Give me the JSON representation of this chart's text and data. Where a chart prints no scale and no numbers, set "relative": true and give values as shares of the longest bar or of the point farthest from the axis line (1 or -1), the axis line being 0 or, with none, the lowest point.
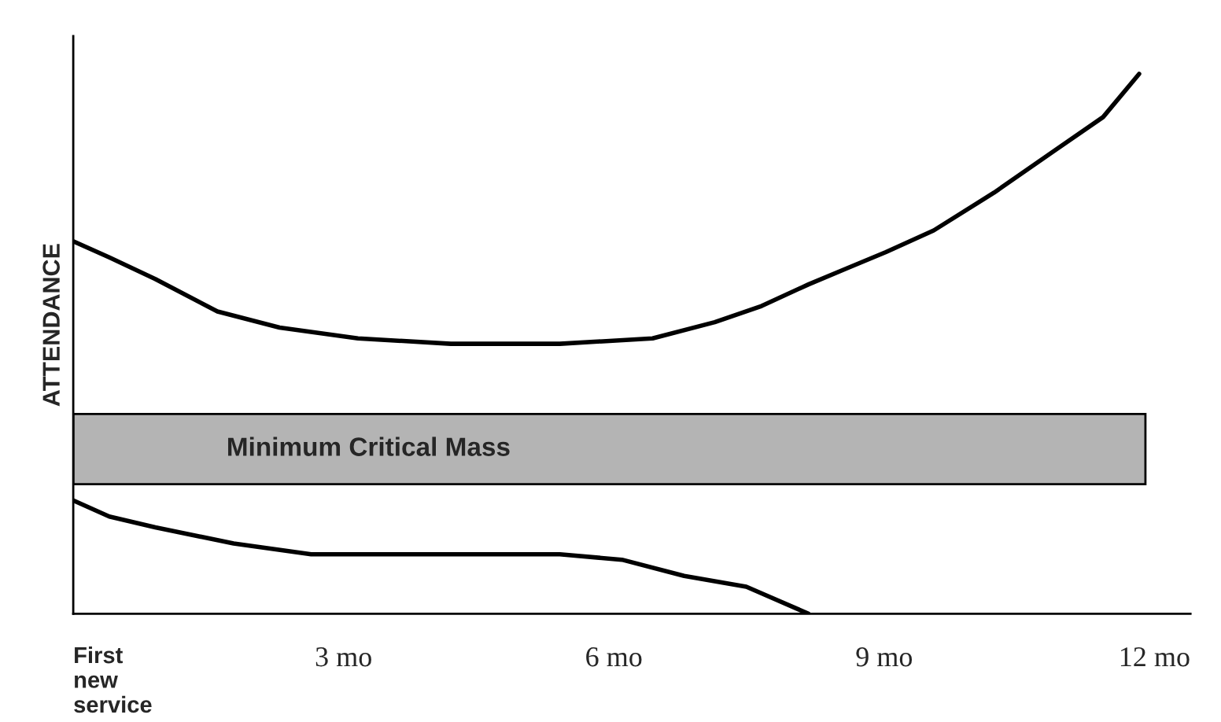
{
  "chart_data": {
    "type": "line",
    "relative": true,
    "ylabel": "ATTENDANCE",
    "tick_labels": "x",
    "grid": false,
    "marker": "none",
    "line_style": "solid",
    "xlim": [
      0,
      12.4
    ],
    "xticks": [
      {
        "value": 0,
        "label": "First\nnew\nservice"
      },
      {
        "value": 3,
        "label": "3 mo"
      },
      {
        "value": 6,
        "label": "6 mo"
      },
      {
        "value": 9,
        "label": "9 mo"
      },
      {
        "value": 12,
        "label": "12 mo"
      }
    ],
    "series": [
      {
        "color": "#000000",
        "x": [
          0,
          0.4,
          0.91,
          1.6,
          2.29,
          3.16,
          4.19,
          5.4,
          6.43,
          7.12,
          7.64,
          8.16,
          8.59,
          9.02,
          9.55,
          10.22,
          10.91,
          11.43,
          11.83
        ],
        "values": [
          0.69,
          0.66,
          0.62,
          0.56,
          0.53,
          0.51,
          0.5,
          0.5,
          0.51,
          0.54,
          0.57,
          0.61,
          0.64,
          0.67,
          0.71,
          0.78,
          0.86,
          0.92,
          1
        ]
      },
      {
        "color": "#000000",
        "x": [
          0,
          0.4,
          0.91,
          1.78,
          2.64,
          4.19,
          5.4,
          6.09,
          6.78,
          7.47,
          8.16
        ],
        "values": [
          0.21,
          0.18,
          0.16,
          0.13,
          0.11,
          0.11,
          0.11,
          0.1,
          0.07,
          0.05,
          0
        ]
      }
    ],
    "bands": [
      {
        "axis": "y",
        "from": 0.24,
        "to": 0.37,
        "label": "Minimum Critical Mass",
        "color": "#b4b4b4"
      }
    ]
  }
}
